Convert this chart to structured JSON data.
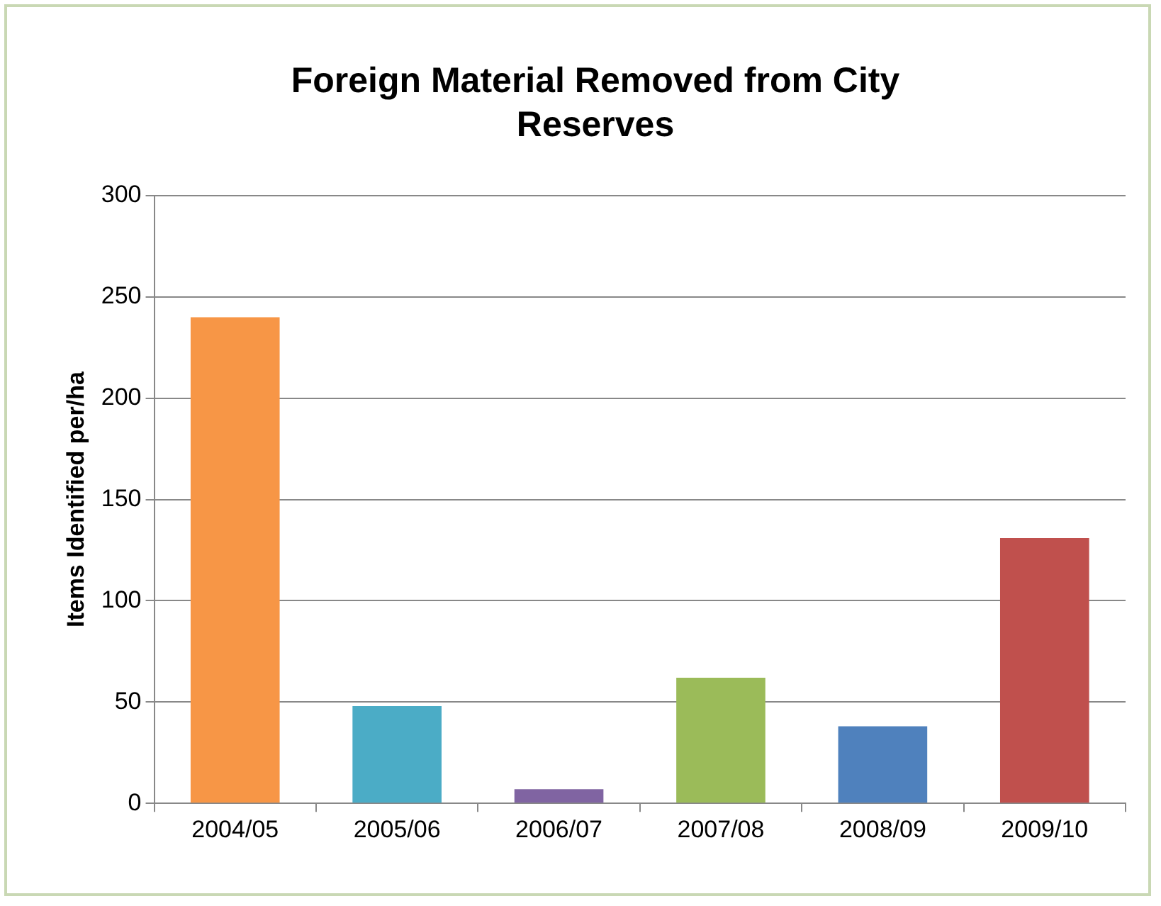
{
  "chart_data": {
    "type": "bar",
    "title": "Foreign Material Removed from City Reserves",
    "ylabel": "Items Identified per/ha",
    "categories": [
      "2004/05",
      "2005/06",
      "2006/07",
      "2007/08",
      "2008/09",
      "2009/10"
    ],
    "values": [
      240,
      48,
      7,
      62,
      38,
      131
    ],
    "colors": [
      "#f79646",
      "#4bacc6",
      "#8064a2",
      "#9bbb59",
      "#4f81bd",
      "#c0504d"
    ],
    "ylim": [
      0,
      300
    ],
    "yticks": [
      0,
      50,
      100,
      150,
      200,
      250,
      300
    ],
    "grid": "y",
    "legend": false
  }
}
